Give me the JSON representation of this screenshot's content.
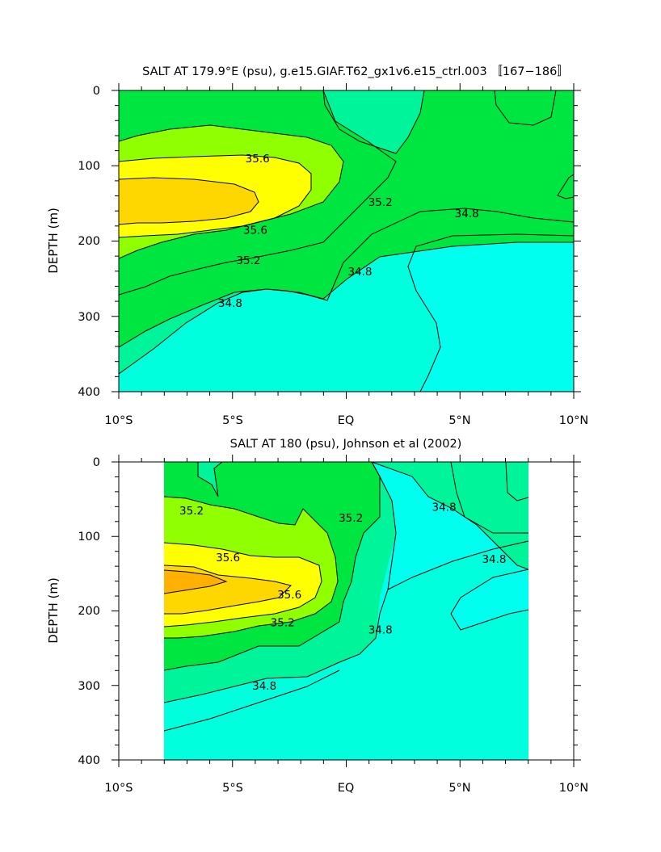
{
  "chart_data": [
    {
      "type": "heatmap",
      "subtype": "filled-contour",
      "title": "SALT AT 179.9°E (psu), g.e15.GIAF.T62_gx1v6.e15_ctrl.003 〚167−186〛",
      "ylabel": "DEPTH (m)",
      "xlabel": "",
      "xlim": [
        -10,
        10
      ],
      "ylim": [
        400,
        0
      ],
      "xticks": [
        -10,
        -5,
        0,
        5,
        10
      ],
      "xtick_labels": [
        "10°S",
        "5°S",
        "EQ",
        "5°N",
        "10°N"
      ],
      "yticks": [
        0,
        100,
        200,
        300,
        400
      ],
      "ytick_labels": [
        "0",
        "100",
        "200",
        "300",
        "400"
      ],
      "contour_interval": 0.2,
      "levels": [
        34.6,
        34.8,
        35.0,
        35.2,
        35.4,
        35.6,
        35.8
      ],
      "level_colors": {
        "below_34.6": "#00ffee",
        "34.6_34.8": "#00ffdd",
        "34.8_35.0": "#00f59a",
        "35.0_35.2": "#00e640",
        "35.2_35.4": "#90ff00",
        "35.4_35.6": "#ffff00",
        "35.6_35.8": "#ffd700",
        "above_35.8": "#ffb000"
      },
      "contour_labels": [
        {
          "text": "35.6",
          "x": -3.9,
          "y": 90
        },
        {
          "text": "35.6",
          "x": -4.0,
          "y": 185
        },
        {
          "text": "35.2",
          "x": -4.3,
          "y": 225
        },
        {
          "text": "34.8",
          "x": -5.1,
          "y": 282
        },
        {
          "text": "34.8",
          "x": 0.6,
          "y": 240
        },
        {
          "text": "35.2",
          "x": 1.5,
          "y": 148
        },
        {
          "text": "34.8",
          "x": 5.3,
          "y": 163
        }
      ],
      "salinity_field": {
        "note": "representative salinity (psu) estimated from filled contours",
        "depths": [
          0,
          50,
          100,
          150,
          200,
          250,
          300,
          350,
          400
        ],
        "lats": [
          -10,
          -7.5,
          -5,
          -2.5,
          0,
          2.5,
          5,
          7.5,
          10
        ],
        "values": [
          [
            35.3,
            35.3,
            35.3,
            35.15,
            35.0,
            34.9,
            34.85,
            34.7,
            34.75
          ],
          [
            35.4,
            35.35,
            35.3,
            35.2,
            35.05,
            34.95,
            34.9,
            34.8,
            34.8
          ],
          [
            35.7,
            35.7,
            35.6,
            35.3,
            35.15,
            35.05,
            34.95,
            34.9,
            34.9
          ],
          [
            35.85,
            35.85,
            35.7,
            35.35,
            35.05,
            34.9,
            34.85,
            34.8,
            34.85
          ],
          [
            35.4,
            35.5,
            35.55,
            35.2,
            34.9,
            34.75,
            34.6,
            34.6,
            34.75
          ],
          [
            35.05,
            35.1,
            35.1,
            34.9,
            34.7,
            34.55,
            34.55,
            34.55,
            34.55
          ],
          [
            34.9,
            34.85,
            34.8,
            34.7,
            34.6,
            34.55,
            34.55,
            34.55,
            34.55
          ],
          [
            34.7,
            34.75,
            34.75,
            34.65,
            34.55,
            34.55,
            34.55,
            34.55,
            34.55
          ],
          [
            34.6,
            34.65,
            34.65,
            34.6,
            34.55,
            34.55,
            34.55,
            34.55,
            34.55
          ]
        ]
      }
    },
    {
      "type": "heatmap",
      "subtype": "filled-contour",
      "title": "SALT AT 180 (psu), Johnson et al (2002)",
      "ylabel": "DEPTH (m)",
      "xlabel": "",
      "xlim": [
        -10,
        10
      ],
      "ylim": [
        400,
        0
      ],
      "data_xlim": [
        -8,
        8
      ],
      "xticks": [
        -10,
        -5,
        0,
        5,
        10
      ],
      "xtick_labels": [
        "10°S",
        "5°S",
        "EQ",
        "5°N",
        "10°N"
      ],
      "yticks": [
        0,
        100,
        200,
        300,
        400
      ],
      "ytick_labels": [
        "0",
        "100",
        "200",
        "300",
        "400"
      ],
      "contour_interval": 0.2,
      "levels": [
        34.6,
        34.8,
        35.0,
        35.2,
        35.4,
        35.6,
        35.8
      ],
      "contour_labels": [
        {
          "text": "35.2",
          "x": -6.8,
          "y": 65
        },
        {
          "text": "35.6",
          "x": -5.2,
          "y": 128
        },
        {
          "text": "35.6",
          "x": -2.5,
          "y": 178
        },
        {
          "text": "35.2",
          "x": -2.8,
          "y": 215
        },
        {
          "text": "34.8",
          "x": -3.6,
          "y": 300
        },
        {
          "text": "35.2",
          "x": 0.2,
          "y": 75
        },
        {
          "text": "34.8",
          "x": 1.5,
          "y": 225
        },
        {
          "text": "34.8",
          "x": 4.3,
          "y": 60
        },
        {
          "text": "34.8",
          "x": 6.5,
          "y": 130
        }
      ],
      "salinity_field": {
        "note": "representative salinity (psu) estimated from filled contours",
        "depths": [
          0,
          50,
          100,
          150,
          200,
          250,
          300,
          350,
          400
        ],
        "lats": [
          -8,
          -6,
          -4,
          -2,
          0,
          2,
          4,
          6,
          8
        ],
        "values": [
          [
            35.0,
            35.3,
            35.55,
            35.85,
            35.5,
            35.25,
            34.9,
            34.65,
            34.6
          ],
          [
            35.05,
            35.3,
            35.5,
            35.7,
            35.4,
            35.2,
            34.9,
            34.7,
            34.6
          ],
          [
            35.2,
            35.3,
            35.5,
            35.6,
            35.3,
            35.1,
            34.9,
            34.7,
            34.65
          ],
          [
            35.2,
            35.3,
            35.45,
            35.45,
            35.1,
            34.95,
            34.85,
            34.7,
            34.65
          ],
          [
            35.2,
            35.2,
            35.3,
            35.2,
            34.95,
            34.85,
            34.75,
            34.7,
            34.65
          ],
          [
            35.0,
            35.0,
            35.0,
            34.95,
            34.85,
            34.75,
            34.7,
            34.65,
            34.65
          ],
          [
            34.85,
            34.8,
            34.8,
            34.75,
            34.75,
            34.7,
            34.7,
            34.65,
            34.65
          ],
          [
            34.7,
            34.7,
            34.75,
            34.7,
            34.65,
            34.65,
            34.7,
            34.65,
            34.65
          ],
          [
            34.6,
            34.65,
            34.7,
            34.75,
            34.65,
            34.65,
            34.7,
            34.65,
            34.65
          ]
        ]
      }
    }
  ]
}
